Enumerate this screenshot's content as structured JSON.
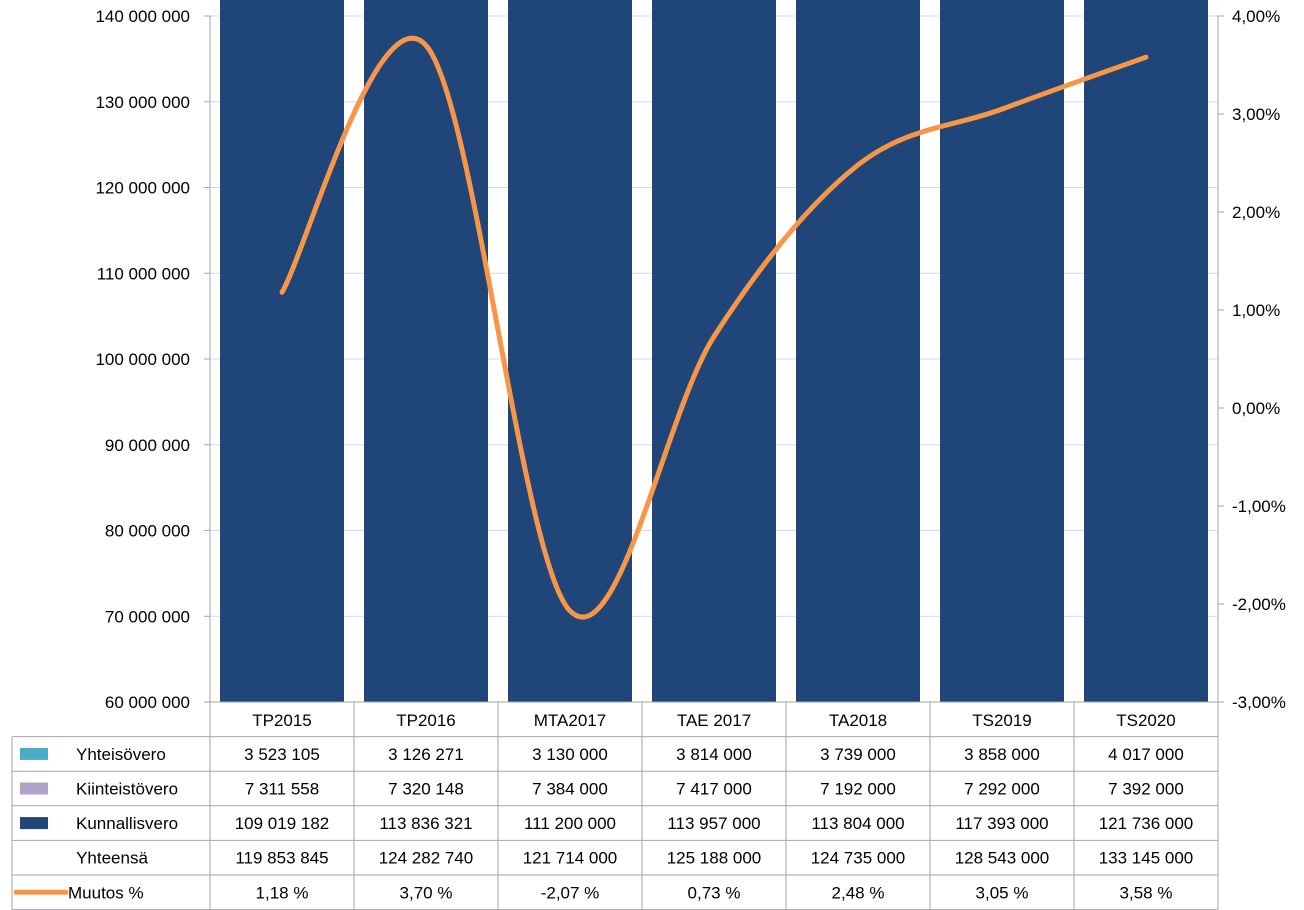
{
  "chart_data": {
    "type": "bar",
    "stacked": true,
    "categories": [
      "TP2015",
      "TP2016",
      "MTA2017",
      "TAE 2017",
      "TA2018",
      "TS2019",
      "TS2020"
    ],
    "series": [
      {
        "name": "Kunnallisvero",
        "color": "#1f4579",
        "values": [
          109019182,
          113836321,
          111200000,
          113957000,
          113804000,
          117393000,
          121736000
        ],
        "labels": [
          "109 019 182",
          "113 836 321",
          "111 200 000",
          "113 957 000",
          "113 804 000",
          "117 393 000",
          "121 736 000"
        ]
      },
      {
        "name": "Kiinteistövero",
        "color": "#b3a2c7",
        "values": [
          7311558,
          7320148,
          7384000,
          7417000,
          7192000,
          7292000,
          7392000
        ],
        "labels": [
          "7 311 558",
          "7 320 148",
          "7 384 000",
          "7 417 000",
          "7 192 000",
          "7 292 000",
          "7 392 000"
        ]
      },
      {
        "name": "Yhteisövero",
        "color": "#4bacc6",
        "values": [
          3523105,
          3126271,
          3130000,
          3814000,
          3739000,
          3858000,
          4017000
        ],
        "labels": [
          "3 523 105",
          "3 126 271",
          "3 130 000",
          "3 814 000",
          "3 739 000",
          "3 858 000",
          "4 017 000"
        ]
      }
    ],
    "line_series": {
      "name": "Muutos %",
      "color": "#f79646",
      "values": [
        1.18,
        3.7,
        -2.07,
        0.73,
        2.48,
        3.05,
        3.58
      ],
      "labels": [
        "1,18 %",
        "3,70 %",
        "-2,07 %",
        "0,73 %",
        "2,48 %",
        "3,05 %",
        "3,58 %"
      ]
    },
    "total_row": {
      "name": "Yhteensä",
      "values": [
        119853845,
        124282740,
        121714000,
        125188000,
        124735000,
        128543000,
        133145000
      ],
      "labels": [
        "119 853 845",
        "124 282 740",
        "121 714 000",
        "125 188 000",
        "124 735 000",
        "128 543 000",
        "133 145 000"
      ]
    },
    "ylim": [
      60000000,
      140000000
    ],
    "yticks": [
      "60 000 000",
      "70 000 000",
      "80 000 000",
      "90 000 000",
      "100 000 000",
      "110 000 000",
      "120 000 000",
      "130 000 000",
      "140 000 000"
    ],
    "y2lim": [
      -3,
      4
    ],
    "y2ticks": [
      "-3,00%",
      "-2,00%",
      "-1,00%",
      "0,00%",
      "1,00%",
      "2,00%",
      "3,00%",
      "4,00%"
    ],
    "grid": true,
    "data_table": true,
    "title": "",
    "xlabel": "",
    "ylabel": ""
  }
}
